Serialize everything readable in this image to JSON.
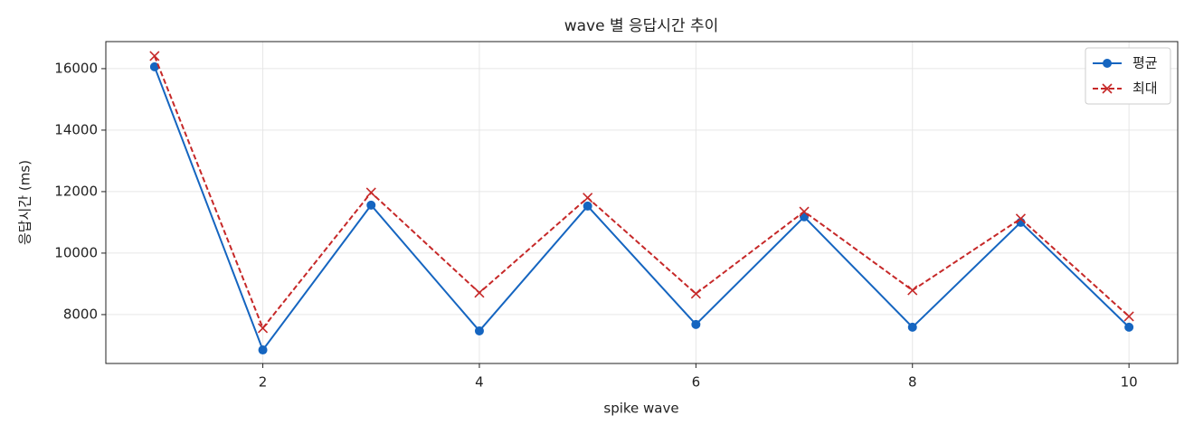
{
  "chart_data": {
    "type": "line",
    "title": "wave 별 응답시간 추이",
    "x_label": "spike wave",
    "y_label": "응답시간 (ms)",
    "x": [
      1,
      2,
      3,
      4,
      5,
      6,
      7,
      8,
      9,
      10
    ],
    "series": [
      {
        "name": "평균",
        "color": "#1565c0",
        "marker": "o",
        "linestyle": "solid",
        "values": [
          16060,
          6850,
          11560,
          7470,
          11530,
          7680,
          11180,
          7590,
          11000,
          7590
        ]
      },
      {
        "name": "최대",
        "color": "#c62828",
        "marker": "x",
        "linestyle": "dashed",
        "values": [
          16410,
          7560,
          11970,
          8710,
          11800,
          8680,
          11350,
          8790,
          11120,
          7940
        ]
      }
    ],
    "xlim": [
      0.55,
      10.45
    ],
    "xticks": [
      2,
      4,
      6,
      8,
      10
    ],
    "ylim": [
      6410,
      16880
    ],
    "yticks": [
      8000,
      10000,
      12000,
      14000,
      16000
    ],
    "grid": true,
    "legend": "upper right"
  }
}
